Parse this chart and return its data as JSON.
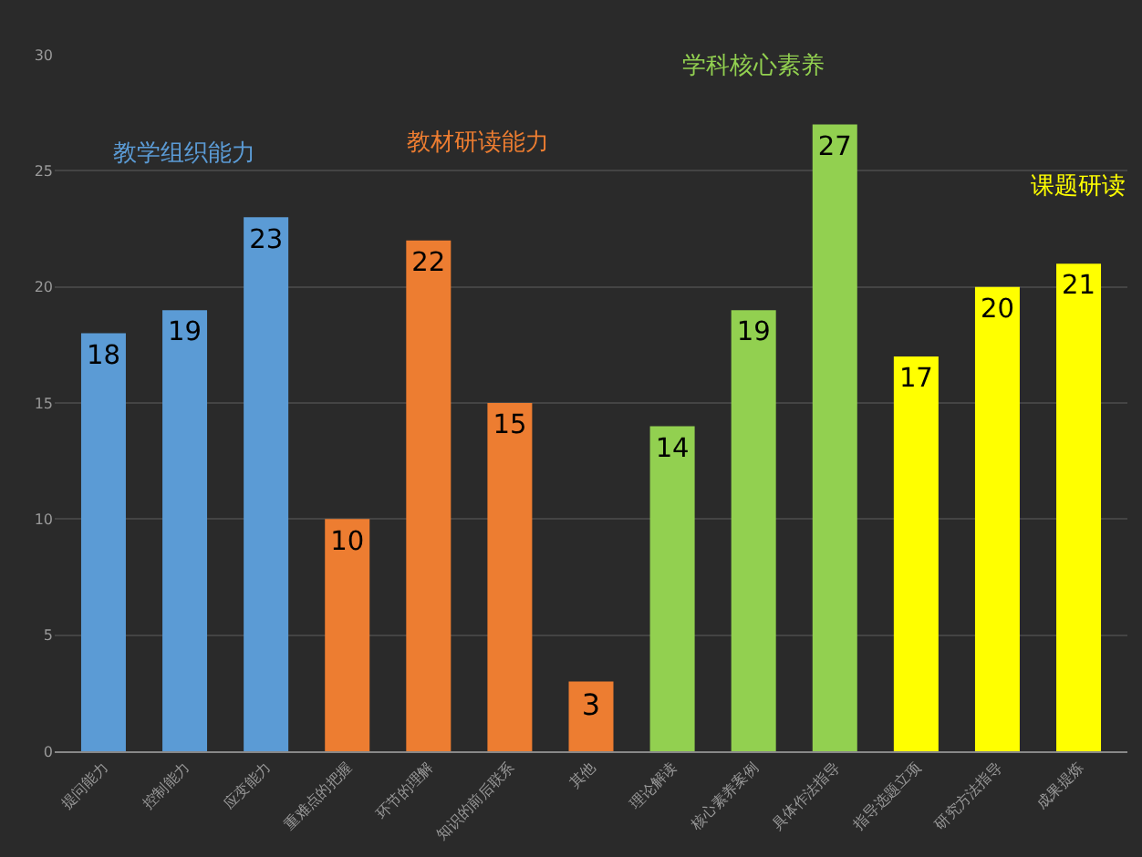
{
  "chart_data": {
    "type": "bar",
    "categories": [
      "提问能力",
      "控制能力",
      "应变能力",
      "重难点的把握",
      "环节的理解",
      "知识的前后联系",
      "其他",
      "理论解读",
      "核心素养案例",
      "具体作法指导",
      "指导选题立项",
      "研究方法指导",
      "成果提炼"
    ],
    "series": [
      {
        "color": "#5b9bd5",
        "values": [
          18,
          19,
          23,
          null,
          null,
          null,
          null,
          null,
          null,
          null,
          null,
          null,
          null
        ]
      },
      {
        "color": "#ed7d31",
        "values": [
          null,
          null,
          null,
          10,
          22,
          15,
          3,
          null,
          null,
          null,
          null,
          null,
          null
        ]
      },
      {
        "color": "#92d050",
        "values": [
          null,
          null,
          null,
          null,
          null,
          null,
          null,
          14,
          19,
          27,
          null,
          null,
          null
        ]
      },
      {
        "color": "#ffff00",
        "values": [
          null,
          null,
          null,
          null,
          null,
          null,
          null,
          null,
          null,
          null,
          17,
          20,
          21
        ]
      }
    ],
    "annotations": [
      "教学组织能力",
      "教材研读能力",
      "学科核心素养",
      "课题研读"
    ],
    "data_labels": true,
    "ylim": [
      0,
      30
    ],
    "yticks": [
      0,
      5,
      10,
      15,
      20,
      25,
      30
    ],
    "grid": "y"
  }
}
